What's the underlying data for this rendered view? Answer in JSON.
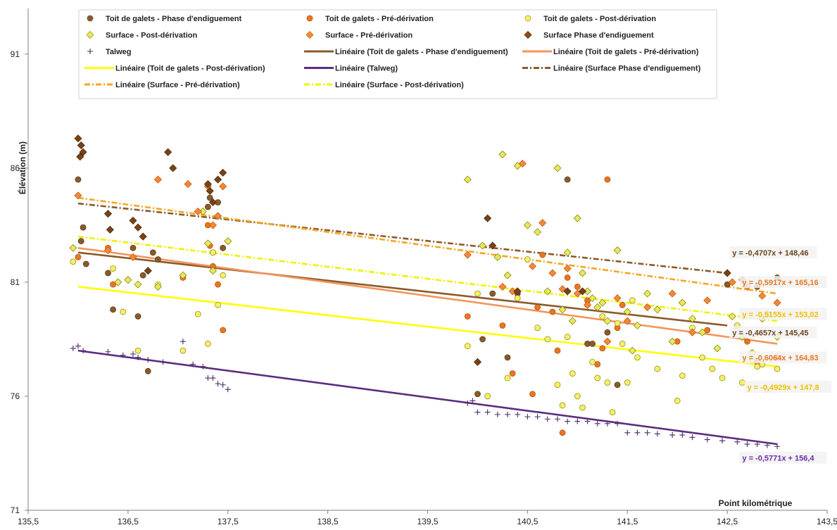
{
  "chart_data": {
    "type": "scatter",
    "title": "",
    "xlabel": "Point kilométrique",
    "ylabel": "Élévation (m)",
    "xlim": [
      135.5,
      143.5
    ],
    "ylim": [
      71,
      93
    ],
    "xticks": [
      "135,5",
      "136,5",
      "137,5",
      "138,5",
      "139,5",
      "140,5",
      "141,5",
      "142,5",
      "143,5"
    ],
    "yticks": [
      "71",
      "76",
      "81",
      "86",
      "91"
    ],
    "grid": false,
    "legend_position": "top",
    "legend_entries": [
      {
        "label": "Toit de galets - Phase d'endiguement",
        "kind": "marker",
        "marker": "circle",
        "color": "#7a5230",
        "fill": "#8b5a2b"
      },
      {
        "label": "Toit de galets - Pré-dérivation",
        "kind": "marker",
        "marker": "circle",
        "color": "#c0550c",
        "fill": "#e87722"
      },
      {
        "label": "Toit de galets - Post-dérivation",
        "kind": "marker",
        "marker": "circle",
        "color": "#a8a020",
        "fill": "#f5f06a"
      },
      {
        "label": "Surface - Post-dérivation",
        "kind": "marker",
        "marker": "diamond",
        "color": "#a8a020",
        "fill": "#e8e860"
      },
      {
        "label": "Surface - Pré-dérivation",
        "kind": "marker",
        "marker": "diamond",
        "color": "#d96c1a",
        "fill": "#f08a3a"
      },
      {
        "label": "Surface Phase d'endiguement",
        "kind": "marker",
        "marker": "diamond",
        "color": "#5a3210",
        "fill": "#8b4a1a"
      },
      {
        "label": "Talweg",
        "kind": "marker",
        "marker": "plus",
        "color": "#4a2a6a",
        "fill": "#4a2a6a"
      },
      {
        "label": "Linéaire (Toit de galets - Phase d'endiguement)",
        "kind": "line",
        "dash": "",
        "color": "#8b5a2b"
      },
      {
        "label": "Linéaire (Toit de galets - Pré-dérivation)",
        "kind": "line",
        "dash": "",
        "color": "#f4955a"
      },
      {
        "label": "Linéaire (Toit de galets - Post-dérivation)",
        "kind": "line",
        "dash": "",
        "color": "#ffff00"
      },
      {
        "label": "Linéaire (Talweg)",
        "kind": "line",
        "dash": "",
        "color": "#5b2d82"
      },
      {
        "label": "Linéaire (Surface Phase d'endiguement)",
        "kind": "line",
        "dash": "8 3 2 3",
        "color": "#8b5a2b"
      },
      {
        "label": "Linéaire (Surface - Pré-dérivation)",
        "kind": "line",
        "dash": "8 3 2 3",
        "color": "#f5a623"
      },
      {
        "label": "Linéaire (Surface - Post-dérivation)",
        "kind": "line",
        "dash": "8 3 2 3",
        "color": "#f0f000"
      }
    ],
    "trendlines": [
      {
        "name": "Linéaire (Surface Phase d'endiguement)",
        "color": "#8b5a2b",
        "dash": "8 3 2 3",
        "x": [
          136.0,
          142.5
        ],
        "y": [
          84.45,
          81.4
        ]
      },
      {
        "name": "Linéaire (Surface - Pré-dérivation)",
        "color": "#f5a623",
        "dash": "8 3 2 3",
        "x": [
          136.0,
          143.0
        ],
        "y": [
          84.7,
          80.5
        ]
      },
      {
        "name": "Linéaire (Surface - Post-dérivation)",
        "color": "#f0f000",
        "dash": "8 3 2 3",
        "x": [
          136.0,
          143.0
        ],
        "y": [
          83.0,
          79.3
        ]
      },
      {
        "name": "Linéaire (Toit de galets - Phase d'endiguement)",
        "color": "#8b5a2b",
        "dash": "",
        "x": [
          136.0,
          142.5
        ],
        "y": [
          82.3,
          79.1
        ]
      },
      {
        "name": "Linéaire (Toit de galets - Pré-dérivation)",
        "color": "#f4955a",
        "dash": "",
        "x": [
          136.0,
          143.0
        ],
        "y": [
          82.5,
          78.3
        ]
      },
      {
        "name": "Linéaire (Toit de galets - Post-dérivation)",
        "color": "#ffff00",
        "dash": "",
        "x": [
          136.0,
          143.0
        ],
        "y": [
          80.8,
          77.3
        ]
      },
      {
        "name": "Linéaire (Talweg)",
        "color": "#5b2d82",
        "dash": "",
        "x": [
          136.0,
          143.0
        ],
        "y": [
          78.0,
          73.9
        ]
      }
    ],
    "equations": [
      {
        "text": "y = -0,4707x + 148,46",
        "color": "#6b4420",
        "x": 142.55,
        "y": 82.2
      },
      {
        "text": "y = -0,5917x + 165,16",
        "color": "#e87722",
        "x": 142.65,
        "y": 80.9
      },
      {
        "text": "y = -0,5155x + 153,02",
        "color": "#f0c000",
        "x": 142.65,
        "y": 79.5
      },
      {
        "text": "y = -0,4657x + 145,45",
        "color": "#6b4420",
        "x": 142.55,
        "y": 78.7
      },
      {
        "text": "y = -0,6064x + 164,83",
        "color": "#e87722",
        "x": 142.65,
        "y": 77.6
      },
      {
        "text": "y = -0,4929x + 147,8",
        "color": "#f0c000",
        "x": 142.7,
        "y": 76.3
      },
      {
        "text": "y = -0,5771x + 156,4",
        "color": "#6b2da8",
        "x": 142.65,
        "y": 73.2
      }
    ],
    "series": [
      {
        "name": "Talweg",
        "marker": "plus",
        "color": "#4a2a6a",
        "fill": "#4a2a6a",
        "x": [
          135.95,
          136.0,
          136.05,
          136.3,
          136.45,
          136.55,
          136.6,
          136.7,
          136.85,
          137.05,
          137.15,
          137.25,
          137.3,
          137.35,
          137.4,
          137.45,
          137.5,
          139.9,
          139.95,
          140.0,
          140.1,
          140.2,
          140.3,
          140.4,
          140.5,
          140.6,
          140.7,
          140.8,
          140.9,
          141.0,
          141.1,
          141.2,
          141.3,
          141.4,
          141.5,
          141.6,
          141.7,
          141.8,
          141.95,
          142.05,
          142.15,
          142.3,
          142.45,
          142.6,
          142.7,
          142.8,
          142.9,
          143.0
        ],
        "y": [
          78.1,
          78.2,
          78.0,
          77.95,
          77.8,
          77.85,
          77.7,
          77.6,
          77.5,
          78.4,
          77.4,
          77.3,
          76.8,
          76.8,
          76.55,
          76.5,
          76.3,
          75.7,
          75.8,
          75.3,
          75.3,
          75.2,
          75.2,
          75.2,
          75.1,
          75.1,
          75.0,
          75.0,
          74.9,
          74.9,
          74.9,
          74.8,
          74.8,
          74.8,
          74.4,
          74.4,
          74.4,
          74.35,
          74.3,
          74.3,
          74.2,
          74.1,
          74.05,
          74.0,
          73.9,
          73.9,
          73.85,
          73.8
        ]
      },
      {
        "name": "Toit de galets - Phase d'endiguement",
        "marker": "circle",
        "color": "#5a3a18",
        "fill": "#8b5a2b",
        "x": [
          136.0,
          136.05,
          136.03,
          136.08,
          136.3,
          136.35,
          136.55,
          136.6,
          136.65,
          136.7,
          136.75,
          136.8,
          137.3,
          137.32,
          137.35,
          137.4,
          137.45,
          140.0,
          140.05,
          140.15,
          140.3,
          140.4,
          140.9,
          141.1,
          141.15,
          141.3,
          141.4,
          142.5,
          142.8,
          143.0
        ],
        "y": [
          85.5,
          83.4,
          82.8,
          81.8,
          81.4,
          79.8,
          82.5,
          79.5,
          81.3,
          77.1,
          82.3,
          82.0,
          84.3,
          84.7,
          82.3,
          84.5,
          82.5,
          76.1,
          78.5,
          80.5,
          77.7,
          80.5,
          85.5,
          78.3,
          78.3,
          78.8,
          76.5,
          80.9,
          80.8,
          81.2
        ]
      },
      {
        "name": "Toit de galets - Pré-dérivation",
        "marker": "circle",
        "color": "#b4500c",
        "fill": "#e87722",
        "x": [
          136.0,
          136.3,
          136.35,
          137.05,
          137.3,
          137.32,
          137.35,
          137.4,
          137.45,
          139.9,
          140.25,
          140.35,
          140.55,
          140.6,
          140.65,
          140.75,
          140.8,
          140.85,
          140.9,
          141.0,
          141.1,
          141.2,
          141.25,
          141.3,
          141.4,
          141.45,
          142.0,
          142.3,
          142.7,
          142.8,
          143.0
        ],
        "y": [
          82.1,
          82.5,
          80.9,
          81.2,
          83.5,
          82.6,
          81.7,
          80.9,
          78.9,
          79.5,
          79.1,
          77.0,
          76.1,
          79.9,
          82.2,
          79.7,
          78.0,
          74.4,
          81.2,
          80.8,
          80.2,
          77.4,
          78.1,
          85.5,
          79.0,
          80.0,
          78.4,
          78.9,
          78.4,
          77.5,
          77.7
        ]
      },
      {
        "name": "Toit de galets - Post-dérivation",
        "marker": "circle",
        "color": "#9a9018",
        "fill": "#f5f06a",
        "x": [
          135.95,
          136.35,
          136.45,
          136.6,
          136.8,
          137.05,
          137.2,
          137.3,
          137.35,
          137.4,
          137.45,
          139.9,
          140.0,
          140.1,
          140.3,
          140.4,
          140.5,
          140.6,
          140.7,
          140.8,
          140.85,
          140.9,
          140.95,
          141.0,
          141.05,
          141.1,
          141.15,
          141.2,
          141.25,
          141.3,
          141.35,
          141.4,
          141.45,
          141.5,
          141.55,
          141.6,
          141.8,
          142.0,
          142.05,
          142.15,
          142.25,
          142.35,
          142.45,
          142.6,
          142.65,
          142.75,
          142.8,
          142.85,
          142.9,
          143.0
        ],
        "y": [
          81.9,
          81.6,
          79.7,
          78.0,
          80.9,
          78.0,
          79.6,
          78.3,
          82.3,
          80.0,
          81.3,
          78.2,
          80.5,
          76.0,
          76.8,
          80.3,
          82.0,
          79.0,
          78.5,
          76.5,
          75.6,
          78.6,
          77.0,
          76.0,
          75.5,
          80.0,
          77.5,
          76.8,
          79.5,
          76.6,
          75.3,
          79.2,
          78.3,
          76.6,
          80.2,
          77.7,
          77.2,
          75.8,
          76.9,
          79.0,
          77.7,
          77.2,
          76.8,
          79.1,
          76.6,
          77.6,
          77.3,
          77.4,
          76.3,
          77.2
        ]
      },
      {
        "name": "Surface - Post-dérivation",
        "marker": "diamond",
        "color": "#8a8a10",
        "fill": "#e8e860",
        "x": [
          135.95,
          136.4,
          136.5,
          136.6,
          136.8,
          137.05,
          137.25,
          137.3,
          137.35,
          137.4,
          137.5,
          139.9,
          140.05,
          140.2,
          140.25,
          140.3,
          140.4,
          140.5,
          140.6,
          140.7,
          140.8,
          140.85,
          140.9,
          140.95,
          141.0,
          141.05,
          141.1,
          141.15,
          141.2,
          141.25,
          141.3,
          141.4,
          141.5,
          141.55,
          141.6,
          141.7,
          141.8,
          141.95,
          142.05,
          142.15,
          142.25,
          142.4,
          142.55,
          142.65,
          142.75,
          142.85,
          142.9,
          143.0
        ],
        "y": [
          82.5,
          81.0,
          81.1,
          80.9,
          80.8,
          81.3,
          84.1,
          82.7,
          81.5,
          83.9,
          82.8,
          85.5,
          82.6,
          82.1,
          86.6,
          81.3,
          86.1,
          83.5,
          83.2,
          80.6,
          86.0,
          79.8,
          82.3,
          79.3,
          83.8,
          81.4,
          80.6,
          80.3,
          79.9,
          80.1,
          79.3,
          82.4,
          79.7,
          78.0,
          79.1,
          80.5,
          79.8,
          78.4,
          80.1,
          79.4,
          78.8,
          78.1,
          79.5,
          78.6,
          77.9,
          79.4,
          79.6,
          78.6
        ]
      },
      {
        "name": "Surface - Pré-dérivation",
        "marker": "diamond",
        "color": "#c85a10",
        "fill": "#f08a3a",
        "x": [
          136.0,
          136.3,
          136.55,
          136.8,
          137.1,
          137.2,
          137.3,
          137.35,
          137.4,
          137.45,
          139.9,
          140.25,
          140.35,
          140.45,
          140.55,
          140.65,
          140.75,
          140.85,
          140.9,
          141.0,
          141.1,
          141.3,
          141.4,
          141.5,
          141.7,
          141.95,
          142.15,
          142.3,
          142.55,
          142.65,
          142.7,
          142.85,
          143.0
        ],
        "y": [
          84.8,
          82.4,
          82.1,
          85.5,
          85.3,
          84.1,
          85.2,
          83.5,
          83.9,
          85.2,
          82.2,
          80.8,
          80.6,
          86.2,
          81.7,
          83.6,
          81.4,
          80.7,
          81.6,
          80.5,
          80.0,
          78.4,
          80.3,
          79.3,
          79.9,
          80.5,
          78.8,
          80.2,
          81.0,
          81.1,
          80.8,
          80.4,
          80.1
        ]
      },
      {
        "name": "Surface Phase d'endiguement",
        "marker": "diamond",
        "color": "#4a2a0a",
        "fill": "#7a4218",
        "x": [
          136.0,
          136.03,
          136.05,
          136.02,
          136.3,
          136.32,
          136.55,
          136.6,
          136.65,
          136.7,
          136.9,
          136.95,
          137.3,
          137.32,
          137.35,
          137.4,
          137.45,
          140.0,
          140.1,
          140.15,
          140.4,
          140.9,
          141.05,
          142.5
        ],
        "y": [
          87.3,
          87.0,
          86.7,
          86.5,
          84.0,
          83.3,
          83.7,
          83.4,
          83.0,
          81.5,
          86.7,
          86.0,
          85.3,
          85.0,
          84.5,
          85.5,
          85.8,
          77.5,
          83.8,
          82.6,
          80.6,
          80.6,
          80.6,
          81.4
        ]
      }
    ]
  }
}
